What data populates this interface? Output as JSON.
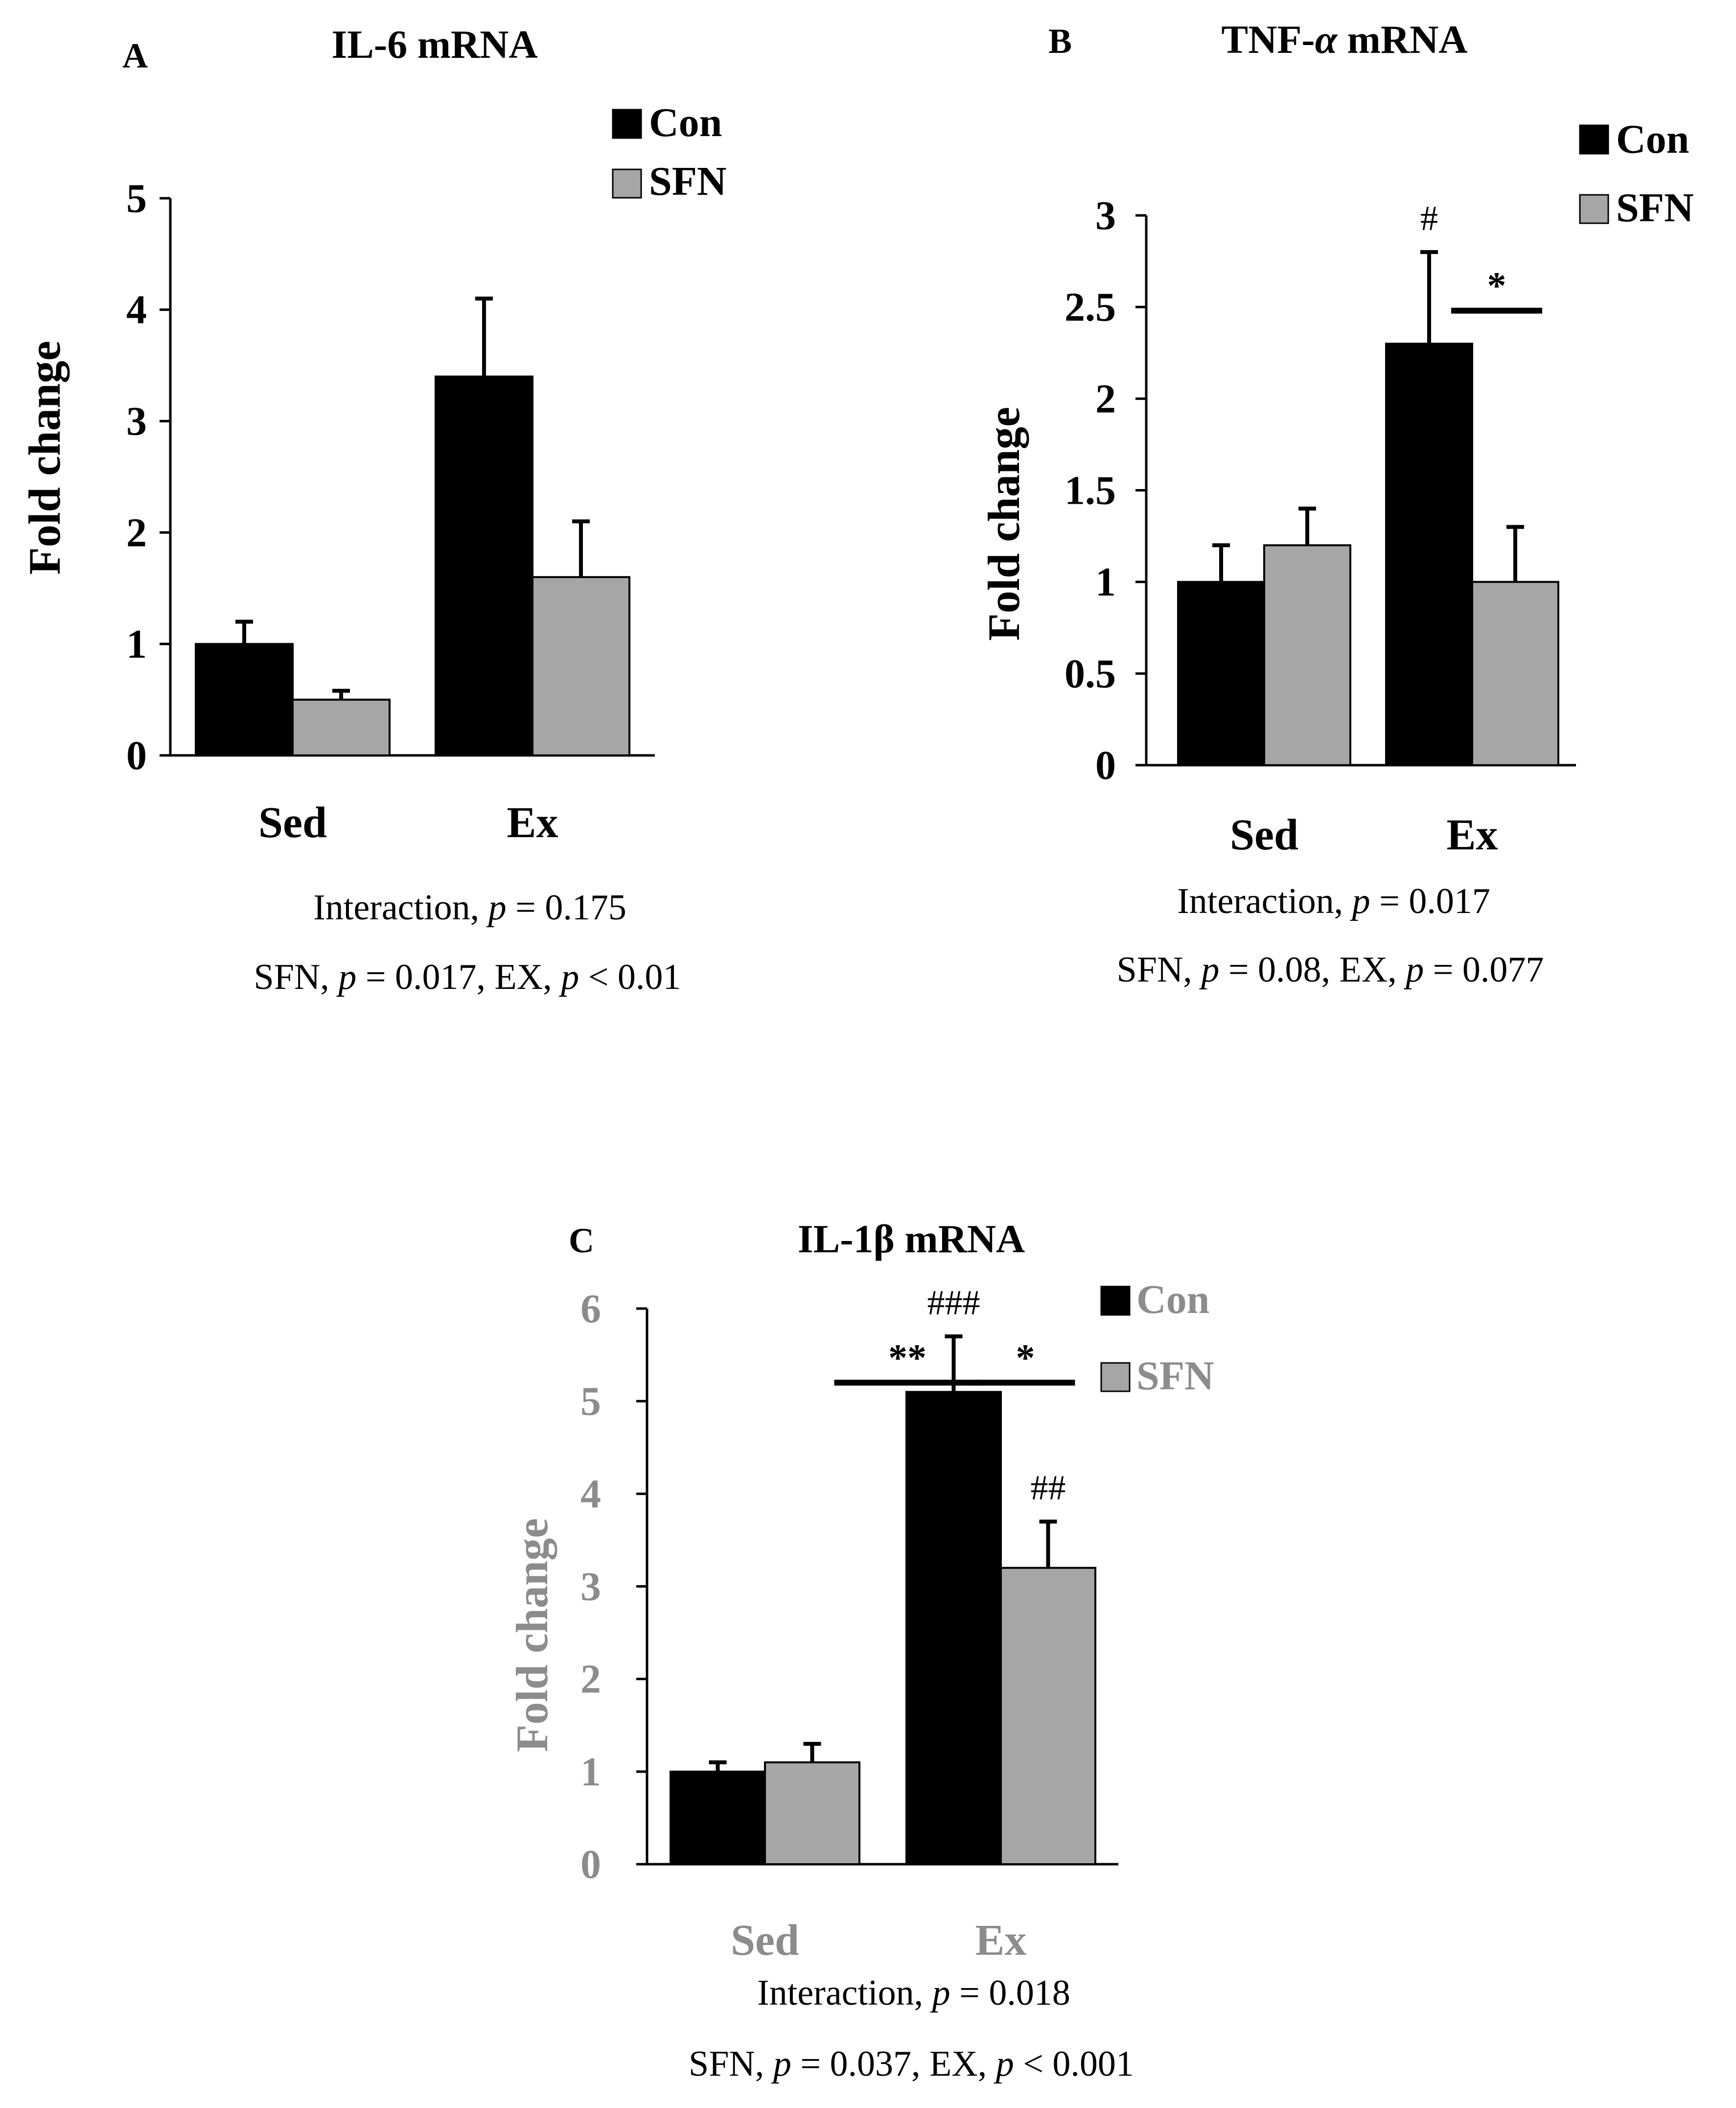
{
  "colors": {
    "con": "#000000",
    "sfn": "#a6a6a6",
    "axis": "#000000",
    "gray_label": "#8c8c8c"
  },
  "chart_data": [
    {
      "panel": "A",
      "type": "bar",
      "title": "IL-6 mRNA",
      "xlabel": "",
      "ylabel": "Fold change",
      "categories": [
        "Sed",
        "Ex"
      ],
      "series": [
        {
          "name": "Con",
          "values": [
            1.0,
            3.4
          ],
          "errors": [
            0.2,
            0.7
          ]
        },
        {
          "name": "SFN",
          "values": [
            0.5,
            1.6
          ],
          "errors": [
            0.08,
            0.5
          ]
        }
      ],
      "ylim": [
        0,
        5
      ],
      "yticks": [
        0,
        1,
        2,
        3,
        4,
        5
      ],
      "ytick_labels": [
        "0",
        "1",
        "2",
        "3",
        "4",
        "5"
      ],
      "legend_position": "top-right",
      "annotations": [],
      "stats": {
        "line1": {
          "pre": "Interaction, ",
          "p": "p",
          "post": " = 0.175"
        },
        "line2": {
          "a": "SFN, ",
          "p1": "p",
          "b": " = 0.017, EX, ",
          "p2": "p",
          "c": " < 0.01"
        }
      }
    },
    {
      "panel": "B",
      "type": "bar",
      "title": "TNF-α mRNA",
      "title_parts": {
        "pre": "TNF-",
        "greek": "α",
        "post": " mRNA"
      },
      "xlabel": "",
      "ylabel": "Fold change",
      "categories": [
        "Sed",
        "Ex"
      ],
      "series": [
        {
          "name": "Con",
          "values": [
            1.0,
            2.3
          ],
          "errors": [
            0.2,
            0.5
          ]
        },
        {
          "name": "SFN",
          "values": [
            1.2,
            1.0
          ],
          "errors": [
            0.2,
            0.3
          ]
        }
      ],
      "ylim": [
        0,
        3
      ],
      "yticks": [
        0,
        0.5,
        1,
        1.5,
        2,
        2.5,
        3
      ],
      "ytick_labels": [
        "0",
        "0.5",
        "1",
        "1.5",
        "2",
        "2.5",
        "3"
      ],
      "legend_position": "top-right",
      "annotations": [
        {
          "text": "#",
          "type": "above-bar",
          "category": 1,
          "series": 0
        },
        {
          "text": "*",
          "type": "bracket",
          "from": [
            1,
            0
          ],
          "to": [
            1,
            1
          ],
          "level": 2.48
        }
      ],
      "stats": {
        "line1": {
          "pre": "Interaction, ",
          "p": "p",
          "post": " = 0.017"
        },
        "line2": {
          "a": "SFN, ",
          "p1": "p",
          "b": " = 0.08, EX, ",
          "p2": "p",
          "c": " = 0.077"
        }
      }
    },
    {
      "panel": "C",
      "type": "bar",
      "title": "IL-1β mRNA",
      "xlabel": "",
      "ylabel": "Fold change",
      "categories": [
        "Sed",
        "Ex"
      ],
      "series": [
        {
          "name": "Con",
          "values": [
            1.0,
            5.1
          ],
          "errors": [
            0.1,
            0.6
          ]
        },
        {
          "name": "SFN",
          "values": [
            1.1,
            3.2
          ],
          "errors": [
            0.2,
            0.5
          ]
        }
      ],
      "ylim": [
        0,
        6
      ],
      "yticks": [
        0,
        1,
        2,
        3,
        4,
        5,
        6
      ],
      "ytick_labels": [
        "0",
        "1",
        "2",
        "3",
        "4",
        "5",
        "6"
      ],
      "legend_position": "top-right",
      "annotations": [
        {
          "text": "###",
          "type": "above-bar",
          "category": 1,
          "series": 0
        },
        {
          "text": "##",
          "type": "above-bar",
          "category": 1,
          "series": 1
        },
        {
          "text": "**",
          "type": "bracket",
          "from": [
            0,
            1
          ],
          "to": [
            1,
            0
          ],
          "level": 5.2
        },
        {
          "text": "*",
          "type": "bracket",
          "from": [
            1,
            0
          ],
          "to": [
            1,
            1
          ],
          "level": 5.2
        }
      ],
      "stats": {
        "line1": {
          "pre": "Interaction, ",
          "p": "p",
          "post": " = 0.018"
        },
        "line2": {
          "a": "SFN, ",
          "p1": "p",
          "b": " = 0.037, EX, ",
          "p2": "p",
          "c": " < 0.001"
        }
      }
    }
  ]
}
